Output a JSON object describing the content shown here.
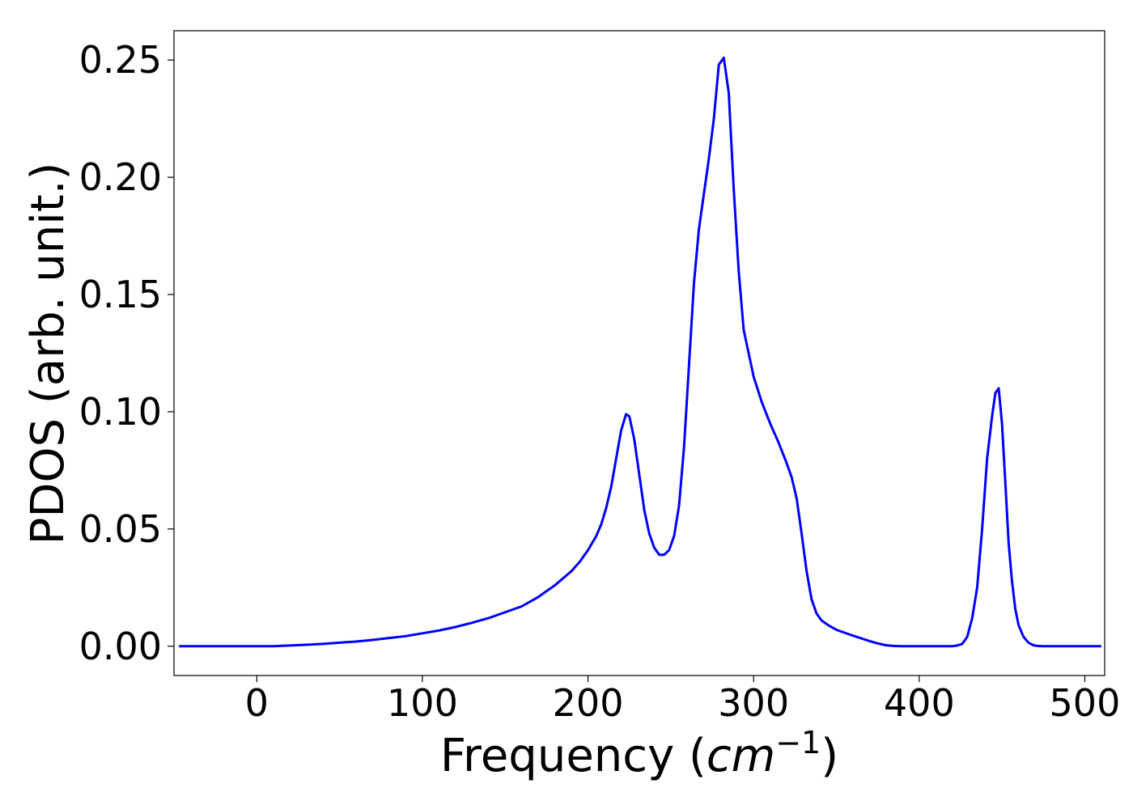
{
  "chart_data": {
    "type": "line",
    "title": "",
    "xlabel": "Frequency",
    "xlabel_unit": "cm",
    "xlabel_unit_exponent": "−1",
    "ylabel": "PDOS (arb. unit.)",
    "xlim": [
      -50,
      512
    ],
    "ylim": [
      -0.0125,
      0.2625
    ],
    "x_ticks": [
      0,
      100,
      200,
      300,
      400,
      500
    ],
    "x_tick_labels": [
      "0",
      "100",
      "200",
      "300",
      "400",
      "500"
    ],
    "y_ticks": [
      0.0,
      0.05,
      0.1,
      0.15,
      0.2,
      0.25
    ],
    "y_tick_labels": [
      "0.00",
      "0.05",
      "0.10",
      "0.15",
      "0.20",
      "0.25"
    ],
    "grid": false,
    "legend": false,
    "line_color": "#0000ff",
    "series": [
      {
        "x": [
          -47,
          0,
          10,
          20,
          30,
          40,
          50,
          60,
          70,
          80,
          90,
          100,
          110,
          120,
          130,
          140,
          150,
          160,
          170,
          180,
          190,
          195,
          200,
          205,
          208,
          211,
          214,
          217,
          220,
          223,
          225,
          228,
          231,
          234,
          237,
          240,
          243,
          246,
          249,
          252,
          255,
          258,
          261,
          264,
          267,
          270,
          273,
          276,
          279,
          282,
          285,
          288,
          291,
          294,
          297,
          300,
          305,
          310,
          315,
          320,
          323,
          326,
          329,
          332,
          335,
          338,
          341,
          345,
          350,
          360,
          370,
          375,
          380,
          385,
          390,
          400,
          410,
          420,
          423,
          426,
          429,
          432,
          435,
          438,
          441,
          444,
          446,
          448,
          450,
          452,
          454,
          456,
          458,
          460,
          463,
          466,
          469,
          472,
          475,
          480,
          490,
          500,
          510
        ],
        "y": [
          0.0,
          0.0,
          0.0,
          0.0003,
          0.0006,
          0.001,
          0.0015,
          0.002,
          0.0027,
          0.0035,
          0.0043,
          0.0055,
          0.0067,
          0.0082,
          0.01,
          0.012,
          0.0145,
          0.017,
          0.021,
          0.026,
          0.032,
          0.036,
          0.041,
          0.047,
          0.052,
          0.059,
          0.068,
          0.08,
          0.092,
          0.099,
          0.098,
          0.088,
          0.073,
          0.058,
          0.048,
          0.042,
          0.039,
          0.039,
          0.041,
          0.047,
          0.06,
          0.085,
          0.12,
          0.155,
          0.178,
          0.193,
          0.208,
          0.225,
          0.248,
          0.251,
          0.236,
          0.195,
          0.16,
          0.135,
          0.125,
          0.115,
          0.104,
          0.095,
          0.087,
          0.078,
          0.072,
          0.063,
          0.048,
          0.032,
          0.02,
          0.014,
          0.011,
          0.009,
          0.007,
          0.0045,
          0.0022,
          0.0012,
          0.0004,
          0.0001,
          0.0,
          0.0,
          0.0,
          0.0,
          0.0003,
          0.001,
          0.004,
          0.012,
          0.025,
          0.05,
          0.08,
          0.098,
          0.108,
          0.11,
          0.095,
          0.07,
          0.044,
          0.028,
          0.016,
          0.009,
          0.004,
          0.0015,
          0.0004,
          0.0001,
          0.0,
          0.0,
          0.0,
          0.0,
          0.0
        ]
      }
    ]
  }
}
